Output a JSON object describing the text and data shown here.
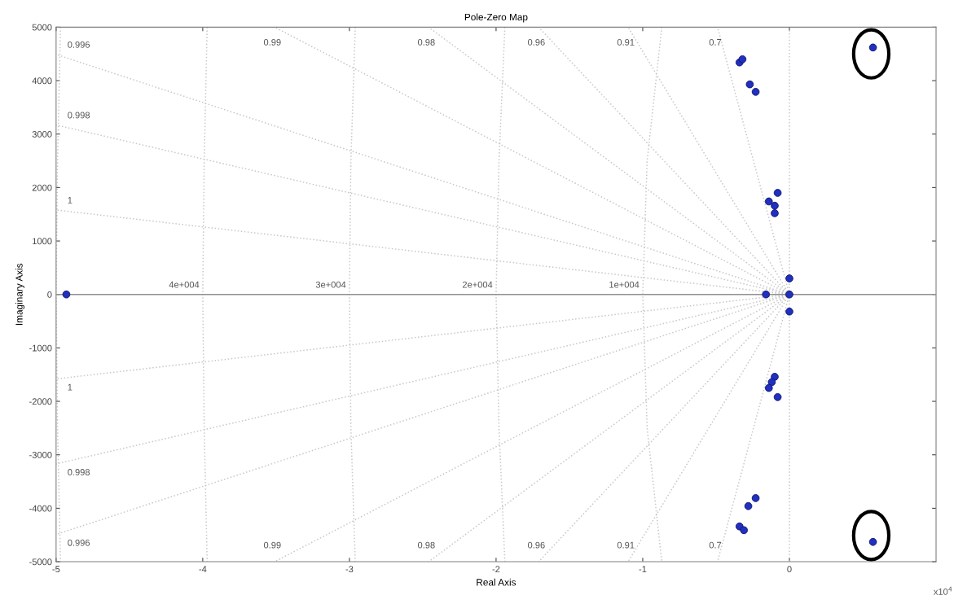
{
  "chart_data": {
    "type": "scatter",
    "title": "Pole-Zero Map",
    "xlabel": "Real Axis",
    "ylabel": "Imaginary Axis",
    "xlim": [
      -5,
      1
    ],
    "xticks": [
      -5,
      -4,
      -3,
      -2,
      -1,
      0
    ],
    "ylim": [
      -5000,
      5000
    ],
    "yticks": [
      -5000,
      -4000,
      -3000,
      -2000,
      -1000,
      0,
      1000,
      2000,
      3000,
      4000,
      5000
    ],
    "grid": false,
    "line_style": "dotted",
    "ref_lines": [
      {
        "axis": "y",
        "value": 0,
        "color": "#909090"
      }
    ],
    "series": [
      {
        "type": "line",
        "name": "1",
        "color": "#c8c8c8",
        "x": [
          0,
          -5
        ],
        "values": [
          0,
          1580
        ]
      },
      {
        "type": "line",
        "name": "0.998",
        "color": "#c8c8c8",
        "x": [
          0,
          -5
        ],
        "values": [
          0,
          3170
        ]
      },
      {
        "type": "line",
        "name": "0.996",
        "color": "#c8c8c8",
        "x": [
          0,
          -5
        ],
        "values": [
          0,
          4490
        ]
      },
      {
        "type": "line",
        "name": "0.99",
        "color": "#c8c8c8",
        "x": [
          0,
          -3.51
        ],
        "values": [
          0,
          5000
        ]
      },
      {
        "type": "line",
        "name": "0.98",
        "color": "#c8c8c8",
        "x": [
          0,
          -2.46
        ],
        "values": [
          0,
          5000
        ]
      },
      {
        "type": "line",
        "name": "0.96",
        "color": "#c8c8c8",
        "x": [
          0,
          -1.71
        ],
        "values": [
          0,
          5000
        ]
      },
      {
        "type": "line",
        "name": "0.91",
        "color": "#c8c8c8",
        "x": [
          0,
          -1.1
        ],
        "values": [
          0,
          5000
        ]
      },
      {
        "type": "line",
        "name": "0.7",
        "color": "#c8c8c8",
        "x": [
          0,
          -0.49
        ],
        "values": [
          0,
          5000
        ]
      },
      {
        "type": "line",
        "name": "1",
        "color": "#c8c8c8",
        "x": [
          0,
          -5
        ],
        "values": [
          0,
          -1580
        ]
      },
      {
        "type": "line",
        "name": "0.998",
        "color": "#c8c8c8",
        "x": [
          0,
          -5
        ],
        "values": [
          0,
          -3170
        ]
      },
      {
        "type": "line",
        "name": "0.996",
        "color": "#c8c8c8",
        "x": [
          0,
          -5
        ],
        "values": [
          0,
          -4490
        ]
      },
      {
        "type": "line",
        "name": "0.99",
        "color": "#c8c8c8",
        "x": [
          0,
          -3.51
        ],
        "values": [
          0,
          -5000
        ]
      },
      {
        "type": "line",
        "name": "0.98",
        "color": "#c8c8c8",
        "x": [
          0,
          -2.46
        ],
        "values": [
          0,
          -5000
        ]
      },
      {
        "type": "line",
        "name": "0.96",
        "color": "#c8c8c8",
        "x": [
          0,
          -1.71
        ],
        "values": [
          0,
          -5000
        ]
      },
      {
        "type": "line",
        "name": "0.91",
        "color": "#c8c8c8",
        "x": [
          0,
          -1.1
        ],
        "values": [
          0,
          -5000
        ]
      },
      {
        "type": "line",
        "name": "0.7",
        "color": "#c8c8c8",
        "x": [
          0,
          -0.49
        ],
        "values": [
          0,
          -5000
        ]
      },
      {
        "type": "line",
        "color": "#c8c8c8",
        "x": [
          0,
          0
        ],
        "values": [
          -5000,
          5000
        ]
      },
      {
        "type": "line",
        "name": "1e+004",
        "color": "#c8c8c8",
        "x": [
          -0.87,
          -0.97,
          -1,
          -0.97,
          -0.87
        ],
        "values": [
          5000,
          2500,
          0,
          -2500,
          -5000
        ]
      },
      {
        "type": "line",
        "name": "2e+004",
        "color": "#c8c8c8",
        "x": [
          -1.94,
          -1.98,
          -2,
          -1.98,
          -1.94
        ],
        "values": [
          5000,
          2500,
          0,
          -2500,
          -5000
        ]
      },
      {
        "type": "line",
        "name": "3e+004",
        "color": "#c8c8c8",
        "x": [
          -2.96,
          -2.99,
          -3,
          -2.99,
          -2.96
        ],
        "values": [
          5000,
          2500,
          0,
          -2500,
          -5000
        ]
      },
      {
        "type": "line",
        "name": "4e+004",
        "color": "#c8c8c8",
        "x": [
          -3.97,
          -3.99,
          -4,
          -3.99,
          -3.97
        ],
        "values": [
          5000,
          2500,
          0,
          -2500,
          -5000
        ]
      },
      {
        "type": "line",
        "color": "#c8c8c8",
        "x": [
          -4.97,
          -4.99,
          -5,
          -4.99,
          -4.97
        ],
        "values": [
          5000,
          2500,
          0,
          -2500,
          -5000
        ]
      },
      {
        "color": "#2030c0",
        "x": [
          -4.93,
          -0.34,
          -0.32,
          -0.27,
          -0.23,
          -0.08,
          -0.14,
          -0.1,
          -0.1,
          0,
          0,
          -0.16,
          0,
          -0.1,
          -0.12,
          -0.14,
          -0.08,
          -0.23,
          -0.28,
          -0.34,
          -0.31,
          0.57,
          0.57
        ],
        "values": [
          0,
          4340,
          4400,
          3930,
          3790,
          1900,
          1740,
          1660,
          1520,
          300,
          0,
          0,
          -320,
          -1540,
          -1640,
          -1750,
          -1920,
          -3810,
          -3960,
          -4340,
          -4410,
          4620,
          -4630
        ]
      }
    ],
    "annotations": [
      "x10$^{4}$"
    ]
  }
}
